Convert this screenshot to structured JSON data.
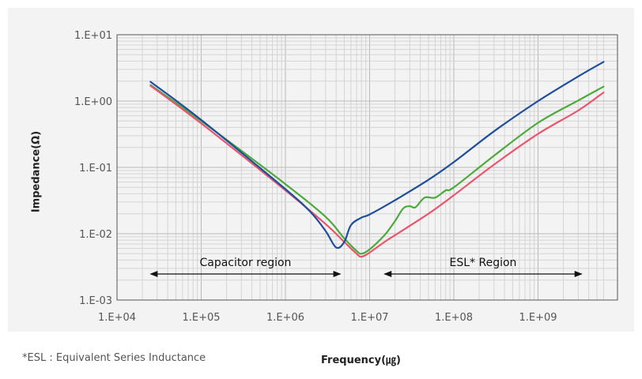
{
  "chart_data": {
    "type": "line",
    "xlabel": "Frequency(㎍)",
    "ylabel": "Impedance(Ω)",
    "x_scale": "log",
    "y_scale": "log",
    "xlim": [
      10000,
      6000000000
    ],
    "ylim": [
      0.001,
      10
    ],
    "x_ticks": [
      "1.E+04",
      "1.E+05",
      "1.E+06",
      "1.E+07",
      "1.E+08",
      "1.E+09"
    ],
    "y_ticks": [
      "1.E+01",
      "1.E+00",
      "1.E-01",
      "1.E-02",
      "1.E-03"
    ],
    "grid": true,
    "series": [
      {
        "color": "#1f4e9a",
        "x": [
          25000,
          100000,
          1000000,
          2000000,
          3000000,
          4000000,
          5000000,
          6000000,
          8000000,
          10000000,
          20000000,
          50000000,
          100000000,
          300000000,
          1000000000,
          3000000000,
          6000000000
        ],
        "y": [
          1.95,
          0.52,
          0.047,
          0.021,
          0.011,
          0.0062,
          0.0075,
          0.0135,
          0.0175,
          0.0195,
          0.032,
          0.065,
          0.12,
          0.35,
          1.0,
          2.35,
          3.9
        ]
      },
      {
        "color": "#4caa3c",
        "x": [
          25000,
          100000,
          1000000,
          3000000,
          5000000,
          7000000,
          8000000,
          10000000,
          15000000,
          20000000,
          25000000,
          30000000,
          35000000,
          45000000,
          60000000,
          80000000,
          100000000,
          300000000,
          1000000000,
          3000000000,
          6000000000
        ],
        "y": [
          1.75,
          0.5,
          0.056,
          0.018,
          0.0085,
          0.0055,
          0.005,
          0.0058,
          0.0095,
          0.0155,
          0.024,
          0.026,
          0.025,
          0.035,
          0.035,
          0.045,
          0.05,
          0.15,
          0.47,
          1.02,
          1.65
        ]
      },
      {
        "color": "#e8566e",
        "x": [
          25000,
          100000,
          1000000,
          3000000,
          5000000,
          7000000,
          8000000,
          10000000,
          15000000,
          20000000,
          50000000,
          100000000,
          300000000,
          1000000000,
          3000000000,
          6000000000
        ],
        "y": [
          1.7,
          0.46,
          0.045,
          0.014,
          0.0075,
          0.005,
          0.0045,
          0.0052,
          0.0075,
          0.0095,
          0.02,
          0.038,
          0.11,
          0.32,
          0.72,
          1.35
        ]
      }
    ],
    "annotations": [
      {
        "text": "Capacitor region",
        "from": 25000,
        "to": 4500000
      },
      {
        "text": "ESL* Region",
        "from": 15000000,
        "to": 3300000000
      }
    ]
  },
  "footnote": "*ESL : Equivalent Series Inductance"
}
